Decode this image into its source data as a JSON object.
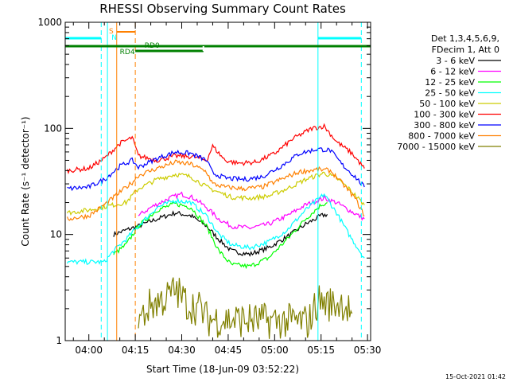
{
  "chart_data": {
    "type": "line",
    "title": "RHESSI Observing Summary Count Rates",
    "xlabel": "Start Time (18-Jun-09 03:52:22)",
    "ylabel": "Count Rate (s⁻¹ detector⁻¹)",
    "yscale": "log",
    "ylim": [
      1,
      1000
    ],
    "xlim": [
      "03:52:22",
      "05:31:00"
    ],
    "x_ticks": [
      "04:00",
      "04:15",
      "04:30",
      "04:45",
      "05:00",
      "05:15",
      "05:30"
    ],
    "y_ticks": [
      "1",
      "10",
      "100",
      "1000"
    ],
    "legend_header": [
      "Det 1,3,4,5,6,9,",
      "FDecim 1, Att 0"
    ],
    "footer_date": "15-Oct-2021 01:42",
    "series": [
      {
        "name": "3 - 6 keV",
        "color": "#000000",
        "points": [
          [
            "04:08",
            10
          ],
          [
            "04:12",
            11
          ],
          [
            "04:16",
            12
          ],
          [
            "04:22",
            14
          ],
          [
            "04:28",
            16
          ],
          [
            "04:33",
            15
          ],
          [
            "04:38",
            12
          ],
          [
            "04:42",
            9
          ],
          [
            "04:46",
            7
          ],
          [
            "04:52",
            6.5
          ],
          [
            "04:58",
            7.5
          ],
          [
            "05:04",
            9.5
          ],
          [
            "05:10",
            12.5
          ],
          [
            "05:15",
            15
          ],
          [
            "05:17",
            15.5
          ]
        ]
      },
      {
        "name": "6 - 12 keV",
        "color": "#ff00ff",
        "points": [
          [
            "04:16",
            15
          ],
          [
            "04:20",
            18
          ],
          [
            "04:26",
            22
          ],
          [
            "04:30",
            24
          ],
          [
            "04:34",
            22
          ],
          [
            "04:38",
            18
          ],
          [
            "04:42",
            14
          ],
          [
            "04:46",
            12
          ],
          [
            "04:52",
            11.5
          ],
          [
            "04:58",
            12.5
          ],
          [
            "05:04",
            15
          ],
          [
            "05:10",
            19
          ],
          [
            "05:16",
            22
          ],
          [
            "05:20",
            20
          ],
          [
            "05:24",
            17
          ],
          [
            "05:29",
            14
          ]
        ]
      },
      {
        "name": "12 - 25 keV",
        "color": "#00ff00",
        "points": [
          [
            "04:08",
            6.5
          ],
          [
            "04:12",
            8
          ],
          [
            "04:16",
            12
          ],
          [
            "04:22",
            17
          ],
          [
            "04:28",
            19.5
          ],
          [
            "04:33",
            18
          ],
          [
            "04:38",
            12
          ],
          [
            "04:42",
            7
          ],
          [
            "04:46",
            5.2
          ],
          [
            "04:52",
            5
          ],
          [
            "04:58",
            6
          ],
          [
            "05:04",
            9
          ],
          [
            "05:10",
            14
          ],
          [
            "05:15",
            19
          ],
          [
            "05:17",
            20
          ]
        ]
      },
      {
        "name": "25 - 50 keV",
        "color": "#00ffff",
        "points": [
          [
            "03:53",
            5.5
          ],
          [
            "04:05",
            5.5
          ],
          [
            "04:08",
            7
          ],
          [
            "04:12",
            9
          ],
          [
            "04:16",
            12
          ],
          [
            "04:22",
            18
          ],
          [
            "04:28",
            21
          ],
          [
            "04:33",
            20
          ],
          [
            "04:38",
            15
          ],
          [
            "04:42",
            10
          ],
          [
            "04:46",
            8
          ],
          [
            "04:52",
            7.5
          ],
          [
            "04:58",
            8.5
          ],
          [
            "05:04",
            11
          ],
          [
            "05:10",
            17
          ],
          [
            "05:16",
            24
          ],
          [
            "05:20",
            16
          ],
          [
            "05:24",
            10
          ],
          [
            "05:29",
            6
          ]
        ]
      },
      {
        "name": "50 - 100 keV",
        "color": "#cccc00",
        "points": [
          [
            "03:53",
            16
          ],
          [
            "04:00",
            17
          ],
          [
            "04:08",
            19
          ],
          [
            "04:12",
            20
          ],
          [
            "04:16",
            27
          ],
          [
            "04:22",
            33
          ],
          [
            "04:28",
            37
          ],
          [
            "04:33",
            35
          ],
          [
            "04:38",
            28
          ],
          [
            "04:42",
            25
          ],
          [
            "04:46",
            22.5
          ],
          [
            "04:52",
            22
          ],
          [
            "04:58",
            23
          ],
          [
            "05:04",
            27
          ],
          [
            "05:10",
            33
          ],
          [
            "05:16",
            38
          ],
          [
            "05:20",
            34
          ],
          [
            "05:24",
            27
          ],
          [
            "05:29",
            19
          ]
        ]
      },
      {
        "name": "100 - 300 keV",
        "color": "#ff0000",
        "points": [
          [
            "03:53",
            40
          ],
          [
            "04:00",
            42
          ],
          [
            "04:05",
            52
          ],
          [
            "04:10",
            72
          ],
          [
            "04:14",
            82
          ],
          [
            "04:16",
            55
          ],
          [
            "04:22",
            50
          ],
          [
            "04:28",
            55
          ],
          [
            "04:34",
            54
          ],
          [
            "04:38",
            50
          ],
          [
            "04:40",
            68
          ],
          [
            "04:44",
            50
          ],
          [
            "04:48",
            47
          ],
          [
            "04:54",
            48
          ],
          [
            "05:00",
            58
          ],
          [
            "05:06",
            80
          ],
          [
            "05:12",
            100
          ],
          [
            "05:16",
            105
          ],
          [
            "05:20",
            75
          ],
          [
            "05:25",
            58
          ],
          [
            "05:29",
            42
          ]
        ]
      },
      {
        "name": "300 - 800 keV",
        "color": "#0000ff",
        "points": [
          [
            "03:53",
            27
          ],
          [
            "04:00",
            28
          ],
          [
            "04:05",
            33
          ],
          [
            "04:10",
            44
          ],
          [
            "04:14",
            50
          ],
          [
            "04:16",
            43
          ],
          [
            "04:22",
            52
          ],
          [
            "04:28",
            60
          ],
          [
            "04:33",
            58
          ],
          [
            "04:38",
            50
          ],
          [
            "04:40",
            38
          ],
          [
            "04:44",
            34
          ],
          [
            "04:50",
            33
          ],
          [
            "04:56",
            35
          ],
          [
            "05:02",
            44
          ],
          [
            "05:08",
            58
          ],
          [
            "05:14",
            64
          ],
          [
            "05:18",
            62
          ],
          [
            "05:22",
            45
          ],
          [
            "05:26",
            35
          ],
          [
            "05:29",
            28
          ]
        ]
      },
      {
        "name": "800 - 7000 keV",
        "color": "#ff8000",
        "points": [
          [
            "03:53",
            14
          ],
          [
            "04:00",
            15
          ],
          [
            "04:05",
            19
          ],
          [
            "04:10",
            25
          ],
          [
            "04:14",
            31
          ],
          [
            "04:16",
            36
          ],
          [
            "04:22",
            42
          ],
          [
            "04:28",
            48
          ],
          [
            "04:33",
            46
          ],
          [
            "04:38",
            39
          ],
          [
            "04:40",
            30
          ],
          [
            "04:44",
            28
          ],
          [
            "04:50",
            27
          ],
          [
            "04:56",
            28
          ],
          [
            "05:02",
            33
          ],
          [
            "05:08",
            39
          ],
          [
            "05:14",
            41
          ],
          [
            "05:18",
            40
          ],
          [
            "05:22",
            30
          ],
          [
            "05:26",
            22
          ],
          [
            "05:29",
            15
          ]
        ]
      },
      {
        "name": "7000 - 15000 keV",
        "color": "#808000",
        "points": [
          [
            "04:16",
            1.5
          ],
          [
            "04:20",
            2.2
          ],
          [
            "04:25",
            2.5
          ],
          [
            "04:28",
            3
          ],
          [
            "04:32",
            2.2
          ],
          [
            "04:36",
            2
          ],
          [
            "04:38",
            1.6
          ],
          [
            "05:11",
            1.5
          ],
          [
            "05:14",
            2.4
          ],
          [
            "05:18",
            2.2
          ],
          [
            "05:22",
            2.3
          ],
          [
            "05:25",
            1.8
          ]
        ]
      }
    ],
    "state_bars": [
      {
        "label": "RD0",
        "color": "#008000"
      },
      {
        "label": "RD4",
        "color": "#008000"
      },
      {
        "label": "S",
        "color": "#ff8000"
      },
      {
        "label": "N",
        "color": "#00ffff"
      }
    ]
  }
}
